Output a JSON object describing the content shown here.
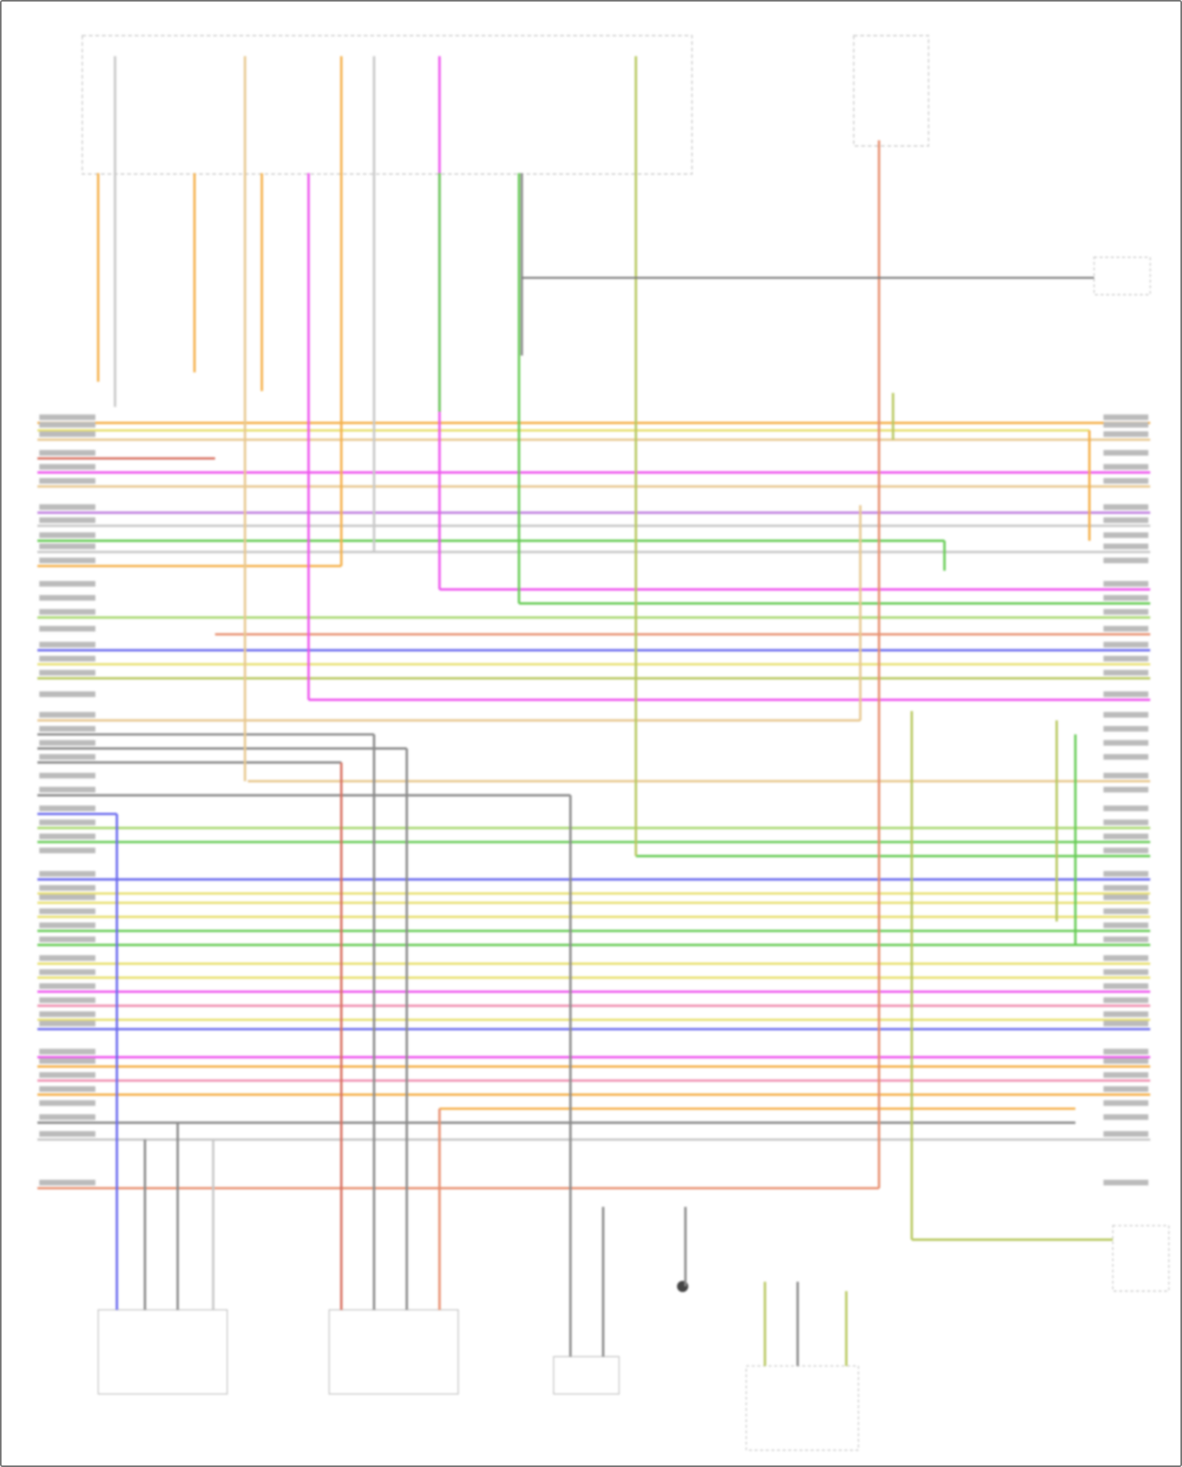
{
  "diagram": {
    "type": "wiring-diagram",
    "text_legible": false,
    "palette": {
      "orange": "#f5b04a",
      "yellow": "#e8e070",
      "tan": "#e8c890",
      "red": "#d87060",
      "magenta": "#ee55ee",
      "pink": "#f08fb0",
      "violet": "#c080e0",
      "gray": "#8a8a8a",
      "lightgray": "#c8c8c8",
      "green": "#66cc55",
      "lightgreen": "#a8d870",
      "blue": "#6a6aee",
      "salmon": "#e89070",
      "olive": "#b8c860"
    },
    "horizontal_wire_colors": [
      "orange",
      "yellow",
      "tan",
      "red",
      "magenta",
      "tan",
      "violet",
      "lightgray",
      "green",
      "lightgray",
      "orange",
      "magenta",
      "green",
      "lightgreen",
      "salmon",
      "blue",
      "yellow",
      "olive",
      "magenta",
      "tan",
      "gray",
      "gray",
      "gray",
      "tan",
      "gray",
      "blue",
      "lightgreen",
      "green",
      "green",
      "blue",
      "yellow",
      "yellow",
      "yellow",
      "green",
      "green",
      "yellow",
      "yellow",
      "magenta",
      "pink",
      "yellow",
      "blue",
      "magenta",
      "orange",
      "pink",
      "orange",
      "orange",
      "gray",
      "lightgray",
      "salmon"
    ]
  }
}
